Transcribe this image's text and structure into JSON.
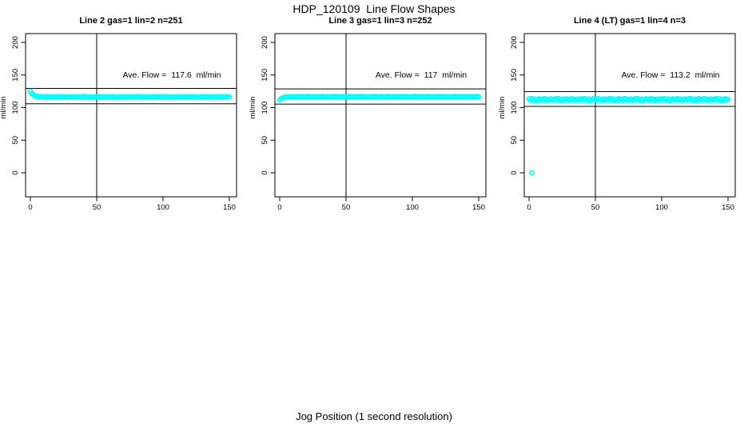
{
  "figure": {
    "title": "HDP_120109  Line Flow Shapes",
    "xlabel": "Jog Position (1 second resolution)",
    "point_color": "#00FFFF",
    "axis_color": "#000000",
    "background": "#FFFFFF"
  },
  "chart_data": [
    {
      "type": "scatter",
      "title": "Line 2 gas=1 lin=2 n=251",
      "annotation": "Ave. Flow =  117.6  ml/min",
      "ave_flow_ml_min": 117.6,
      "n": 251,
      "ylabel": "ml/min",
      "x_ticks": [
        0,
        50,
        100,
        150
      ],
      "y_ticks": [
        0,
        50,
        100,
        150,
        200
      ],
      "xlim": [
        0,
        150
      ],
      "ylim": [
        0,
        200
      ],
      "vline_x": 50,
      "ref_line_high": 129.4,
      "ref_line_low": 105.8,
      "x_start": 0,
      "x_step": 1,
      "y_values": [
        125.2,
        121.4,
        120.3,
        118.6,
        117.2,
        117.5,
        116.3,
        116.6,
        117.0,
        116.2,
        116.6,
        115.9,
        116.9,
        116.2,
        116.6,
        115.7,
        116.4,
        116.7,
        116.0,
        116.3,
        116.7,
        116.0,
        116.9,
        116.4,
        115.8,
        116.6,
        115.7,
        116.3,
        116.8,
        116.1,
        116.5,
        115.9,
        116.9,
        116.2,
        116.6,
        115.7,
        116.4,
        116.7,
        116.0,
        116.3,
        116.7,
        116.0,
        116.9,
        116.4,
        115.8,
        116.6,
        115.7,
        116.3,
        116.8,
        116.1,
        116.5,
        115.9,
        116.9,
        116.2,
        116.6,
        115.7,
        116.4,
        116.7,
        116.0,
        116.3,
        116.7,
        116.0,
        116.9,
        116.4,
        115.8,
        116.6,
        115.7,
        116.3,
        116.8,
        116.1,
        116.5,
        115.9,
        116.9,
        116.2,
        116.6,
        115.7,
        116.4,
        116.7,
        116.0,
        116.3,
        116.7,
        116.0,
        116.9,
        116.4,
        115.8,
        116.6,
        115.7,
        116.3,
        116.8,
        116.1,
        116.5,
        115.9,
        116.9,
        116.2,
        116.6,
        115.7,
        116.4,
        116.7,
        116.0,
        116.3,
        116.7,
        116.0,
        116.9,
        116.4,
        115.8,
        116.6,
        115.7,
        116.3,
        116.8,
        116.1,
        116.5,
        115.9,
        116.9,
        116.2,
        116.6,
        115.7,
        116.4,
        116.7,
        116.0,
        116.3,
        116.7,
        116.0,
        116.9,
        116.4,
        115.8,
        116.6,
        115.7,
        116.3,
        116.8,
        116.1,
        116.5,
        115.9,
        116.9,
        116.2,
        116.6,
        115.7,
        116.4,
        116.7,
        116.0,
        116.3,
        116.7,
        116.0,
        116.9,
        116.4,
        115.8,
        116.6,
        115.7,
        116.3,
        116.8,
        116.1,
        116.5
      ],
      "outliers": []
    },
    {
      "type": "scatter",
      "title": "Line 3 gas=1 lin=3 n=252",
      "annotation": "Ave. Flow =  117  ml/min",
      "ave_flow_ml_min": 117,
      "n": 252,
      "ylabel": "ml/min",
      "x_ticks": [
        0,
        50,
        100,
        150
      ],
      "y_ticks": [
        0,
        50,
        100,
        150,
        200
      ],
      "xlim": [
        0,
        150
      ],
      "ylim": [
        0,
        200
      ],
      "vline_x": 50,
      "ref_line_high": 128.7,
      "ref_line_low": 105.3,
      "x_start": 0,
      "x_step": 1,
      "y_values": [
        111.8,
        113.6,
        114.8,
        115.6,
        116.1,
        116.2,
        116.5,
        116.3,
        116.9,
        116.4,
        116.8,
        116.2,
        117.1,
        116.5,
        116.9,
        116.0,
        116.7,
        117.0,
        116.3,
        116.6,
        117.0,
        116.3,
        117.2,
        116.7,
        116.1,
        116.9,
        116.0,
        116.6,
        117.1,
        116.4,
        116.8,
        116.2,
        117.2,
        116.5,
        116.9,
        116.0,
        116.7,
        117.0,
        116.3,
        116.6,
        117.0,
        116.3,
        117.2,
        116.7,
        116.1,
        116.9,
        116.0,
        116.6,
        117.1,
        116.4,
        116.8,
        116.2,
        117.2,
        116.5,
        116.9,
        116.0,
        116.7,
        117.0,
        116.3,
        116.6,
        117.0,
        116.3,
        117.2,
        116.7,
        116.1,
        116.9,
        116.0,
        116.6,
        117.1,
        116.4,
        116.8,
        116.2,
        117.2,
        116.5,
        116.9,
        116.0,
        116.7,
        117.0,
        116.3,
        116.6,
        117.0,
        116.3,
        117.2,
        116.7,
        116.1,
        116.9,
        116.0,
        116.6,
        117.1,
        116.4,
        116.8,
        116.2,
        117.2,
        116.5,
        116.9,
        116.0,
        116.7,
        117.0,
        116.3,
        116.6,
        117.0,
        116.3,
        117.2,
        116.7,
        116.1,
        116.9,
        116.0,
        116.6,
        117.1,
        116.4,
        116.8,
        116.2,
        117.2,
        116.5,
        116.9,
        116.0,
        116.7,
        117.0,
        116.3,
        116.6,
        117.0,
        116.3,
        117.2,
        116.7,
        116.1,
        116.9,
        116.0,
        116.6,
        117.1,
        116.4,
        116.8,
        116.2,
        117.2,
        116.5,
        116.9,
        116.0,
        116.7,
        117.0,
        116.3,
        116.6,
        117.0,
        116.3,
        117.2,
        116.7,
        116.1,
        116.9,
        116.0,
        116.6,
        117.1,
        116.4,
        116.8
      ],
      "outliers": []
    },
    {
      "type": "scatter",
      "title": "Line 4 (LT) gas=1 lin=4 n=3",
      "annotation": "Ave. Flow =  113.2  ml/min",
      "ave_flow_ml_min": 113.2,
      "n": 3,
      "ylabel": "ml/min",
      "x_ticks": [
        0,
        50,
        100,
        150
      ],
      "y_ticks": [
        0,
        50,
        100,
        150,
        200
      ],
      "xlim": [
        0,
        150
      ],
      "ylim": [
        0,
        200
      ],
      "vline_x": 50,
      "ref_line_high": 124.5,
      "ref_line_low": 101.9,
      "x_start": 0,
      "x_step": 1,
      "y_values": [
        113.5,
        111.2,
        113.9,
        112.7,
        110.9,
        113.2,
        110.8,
        112.4,
        113.7,
        111.6,
        112.9,
        111.1,
        113.8,
        112.0,
        113.1,
        110.7,
        112.6,
        113.4,
        111.4,
        112.3,
        113.5,
        111.2,
        113.9,
        112.7,
        110.9,
        113.2,
        110.8,
        112.4,
        113.7,
        111.6,
        112.9,
        111.1,
        113.8,
        112.0,
        113.1,
        110.7,
        112.6,
        113.4,
        111.4,
        112.3,
        113.5,
        111.2,
        113.9,
        112.7,
        110.9,
        113.2,
        110.8,
        112.4,
        113.7,
        111.6,
        112.9,
        111.1,
        113.8,
        112.0,
        113.1,
        110.7,
        112.6,
        113.4,
        111.4,
        112.3,
        113.5,
        111.2,
        113.9,
        112.7,
        110.9,
        113.2,
        110.8,
        112.4,
        113.7,
        111.6,
        112.9,
        111.1,
        113.8,
        112.0,
        113.1,
        110.7,
        112.6,
        113.4,
        111.4,
        112.3,
        113.5,
        111.2,
        113.9,
        112.7,
        110.9,
        113.2,
        110.8,
        112.4,
        113.7,
        111.6,
        112.9,
        111.1,
        113.8,
        112.0,
        113.1,
        110.7,
        112.6,
        113.4,
        111.4,
        112.3,
        113.5,
        111.2,
        113.9,
        112.7,
        110.9,
        113.2,
        110.8,
        112.4,
        113.7,
        111.6,
        112.9,
        111.1,
        113.8,
        112.0,
        113.1,
        110.7,
        112.6,
        113.4,
        111.4,
        112.3,
        113.5,
        111.2,
        113.9,
        112.7,
        110.9,
        113.2,
        110.8,
        112.4,
        113.7,
        111.6,
        112.9,
        111.1,
        113.8,
        112.0,
        113.1,
        110.7,
        112.6,
        113.4,
        111.4,
        112.3,
        113.5,
        111.2,
        113.9,
        112.7,
        110.9,
        113.2,
        110.8,
        112.4,
        113.7,
        111.6,
        112.9
      ],
      "outliers": [
        {
          "x": 2,
          "y": 0
        }
      ]
    }
  ]
}
